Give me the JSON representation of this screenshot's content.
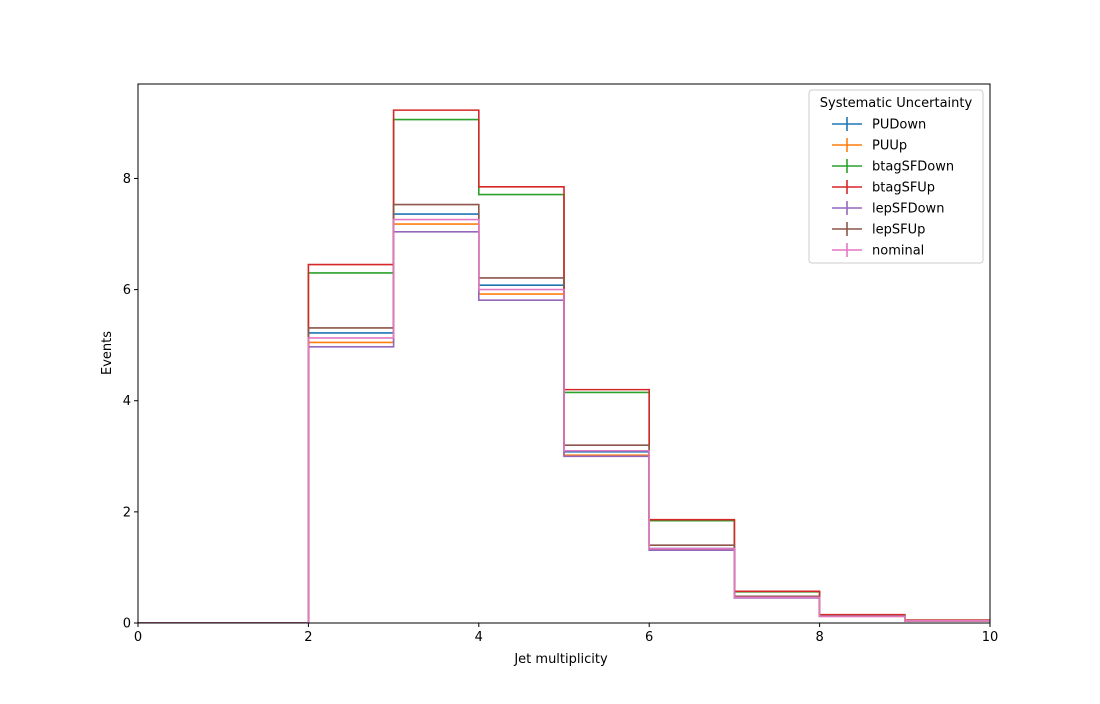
{
  "chart_data": {
    "type": "line",
    "step": "post",
    "xlabel": "Jet multiplicity",
    "ylabel": "Events",
    "xlim": [
      0,
      10
    ],
    "ylim": [
      0,
      9.7
    ],
    "xticks": [
      0,
      2,
      4,
      6,
      8,
      10
    ],
    "yticks": [
      0,
      2,
      4,
      6,
      8
    ],
    "grid": false,
    "legend": {
      "title": "Systematic Uncertainty",
      "position": "top-right"
    },
    "bin_edges": [
      0,
      1,
      2,
      3,
      4,
      5,
      6,
      7,
      8,
      9,
      10
    ],
    "series": [
      {
        "name": "PUDown",
        "color": "#1f77b4",
        "values": [
          0,
          0,
          5.22,
          7.36,
          6.08,
          3.08,
          1.34,
          0.47,
          0.13,
          0.04
        ]
      },
      {
        "name": "PUUp",
        "color": "#ff7f0e",
        "values": [
          0,
          0,
          5.05,
          7.18,
          5.92,
          3.02,
          1.32,
          0.46,
          0.12,
          0.04
        ]
      },
      {
        "name": "btagSFDown",
        "color": "#2ca02c",
        "values": [
          0,
          0,
          6.3,
          9.06,
          7.71,
          4.15,
          1.84,
          0.56,
          0.14,
          0.05
        ]
      },
      {
        "name": "btagSFUp",
        "color": "#d62728",
        "values": [
          0,
          0,
          6.45,
          9.23,
          7.85,
          4.2,
          1.86,
          0.57,
          0.15,
          0.05
        ]
      },
      {
        "name": "lepSFDown",
        "color": "#9467bd",
        "values": [
          0,
          0,
          4.97,
          7.04,
          5.81,
          3.0,
          1.31,
          0.45,
          0.12,
          0.04
        ]
      },
      {
        "name": "lepSFUp",
        "color": "#8c564b",
        "values": [
          0,
          0,
          5.31,
          7.53,
          6.21,
          3.2,
          1.4,
          0.48,
          0.13,
          0.04
        ]
      },
      {
        "name": "nominal",
        "color": "#e377c2",
        "values": [
          0,
          0,
          5.13,
          7.26,
          6.0,
          3.1,
          1.34,
          0.46,
          0.12,
          0.04
        ]
      }
    ]
  }
}
